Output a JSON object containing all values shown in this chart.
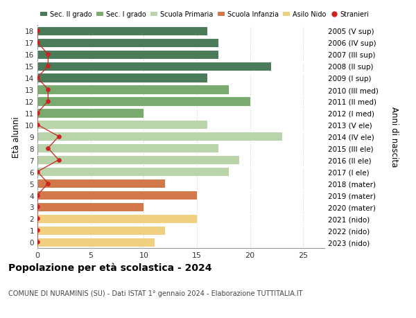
{
  "ages": [
    18,
    17,
    16,
    15,
    14,
    13,
    12,
    11,
    10,
    9,
    8,
    7,
    6,
    5,
    4,
    3,
    2,
    1,
    0
  ],
  "right_labels": [
    "2005 (V sup)",
    "2006 (IV sup)",
    "2007 (III sup)",
    "2008 (II sup)",
    "2009 (I sup)",
    "2010 (III med)",
    "2011 (II med)",
    "2012 (I med)",
    "2013 (V ele)",
    "2014 (IV ele)",
    "2015 (III ele)",
    "2016 (II ele)",
    "2017 (I ele)",
    "2018 (mater)",
    "2019 (mater)",
    "2020 (mater)",
    "2021 (nido)",
    "2022 (nido)",
    "2023 (nido)"
  ],
  "bar_values": [
    16,
    17,
    17,
    22,
    16,
    18,
    20,
    10,
    16,
    23,
    17,
    19,
    18,
    12,
    15,
    10,
    15,
    12,
    11
  ],
  "bar_colors": [
    "#4a7c59",
    "#4a7c59",
    "#4a7c59",
    "#4a7c59",
    "#4a7c59",
    "#7aab6e",
    "#7aab6e",
    "#7aab6e",
    "#b8d4a8",
    "#b8d4a8",
    "#b8d4a8",
    "#b8d4a8",
    "#b8d4a8",
    "#d2784a",
    "#d2784a",
    "#d2784a",
    "#f0d080",
    "#f0d080",
    "#f0d080"
  ],
  "stranieri_values": [
    0,
    0,
    1,
    1,
    0,
    1,
    1,
    0,
    0,
    2,
    1,
    2,
    0,
    1,
    0,
    0,
    0,
    0,
    0
  ],
  "legend_labels": [
    "Sec. II grado",
    "Sec. I grado",
    "Scuola Primaria",
    "Scuola Infanzia",
    "Asilo Nido",
    "Stranieri"
  ],
  "legend_colors": [
    "#4a7c59",
    "#7aab6e",
    "#b8d4a8",
    "#d2784a",
    "#f0d080",
    "#cc2222"
  ],
  "title": "Popolazione per età scolastica - 2024",
  "subtitle": "COMUNE DI NURAMINIS (SU) - Dati ISTAT 1° gennaio 2024 - Elaborazione TUTTITALIA.IT",
  "ylabel_left": "Età alunni",
  "ylabel_right": "Anni di nascita",
  "xlim": [
    0,
    27
  ],
  "xticks": [
    0,
    5,
    10,
    15,
    20,
    25
  ],
  "background_color": "#ffffff",
  "grid_color": "#cccccc"
}
